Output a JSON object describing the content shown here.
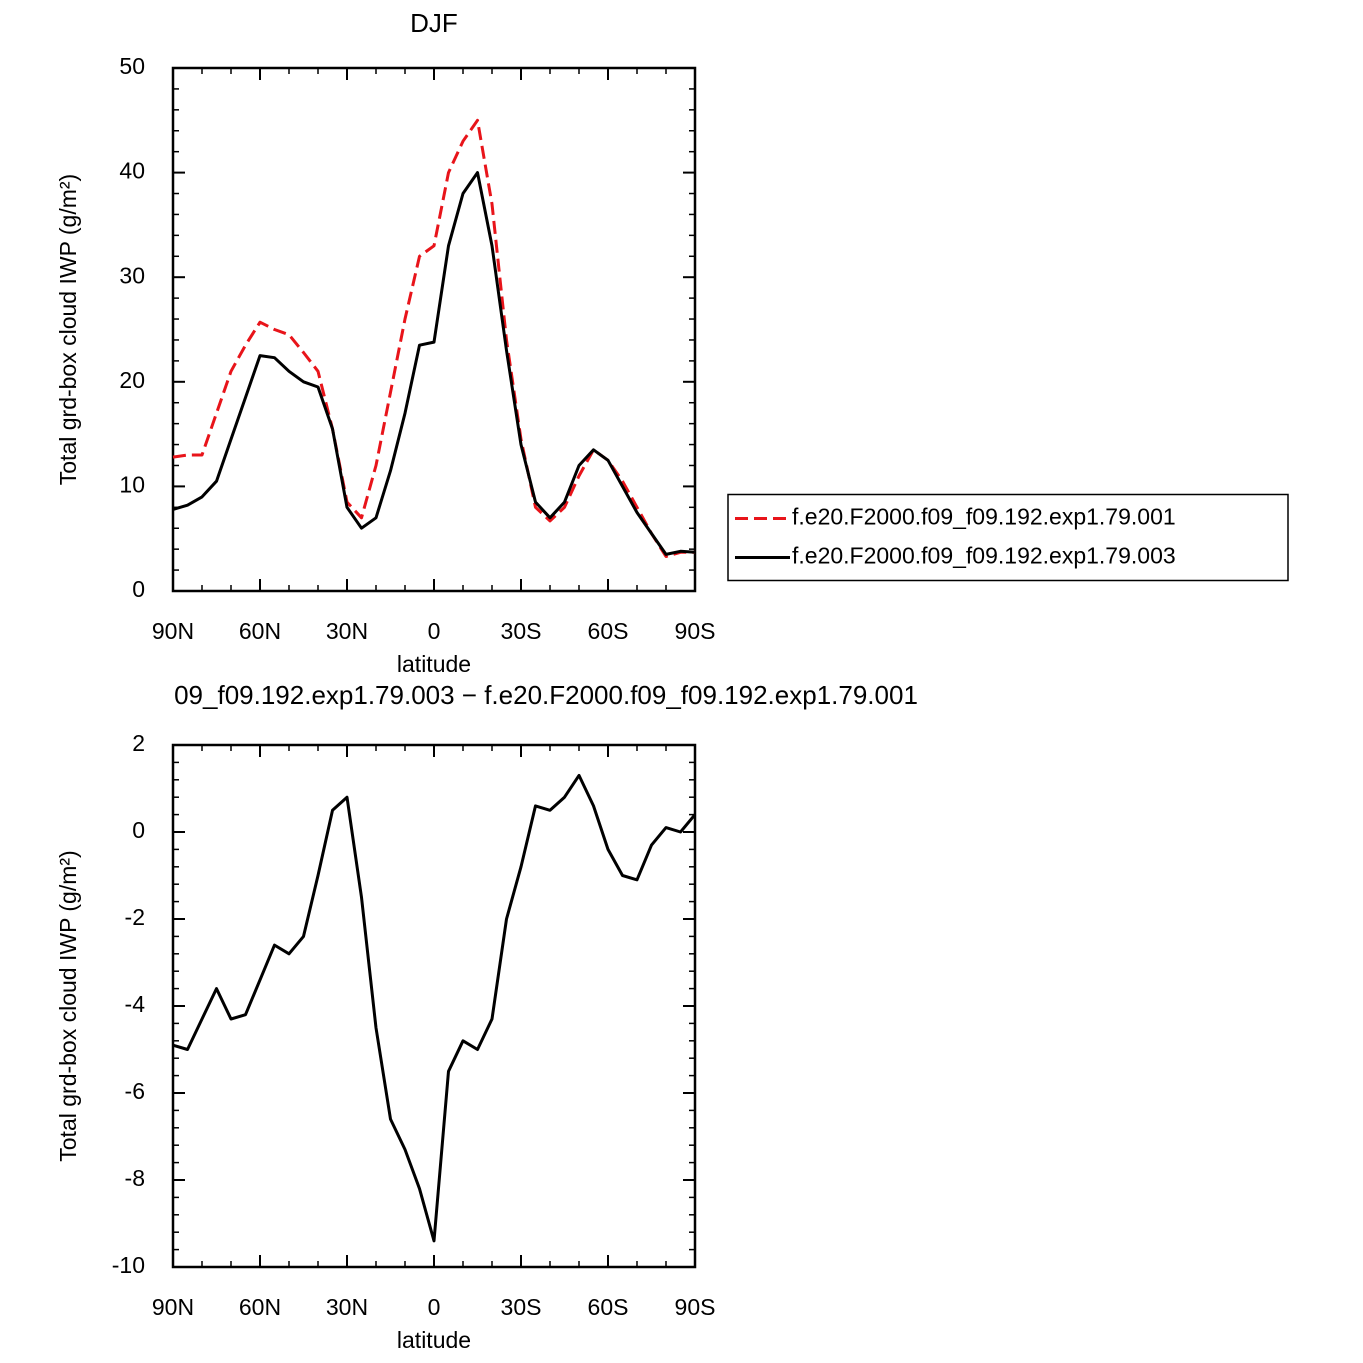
{
  "chart_data": [
    {
      "type": "line",
      "title": "DJF",
      "xlabel": "latitude",
      "ylabel": "Total grd-box cloud IWP (g/m²)",
      "x": [
        90,
        85,
        80,
        75,
        70,
        65,
        60,
        55,
        50,
        45,
        40,
        35,
        30,
        25,
        20,
        15,
        10,
        5,
        0,
        -5,
        -10,
        -15,
        -20,
        -25,
        -30,
        -35,
        -40,
        -45,
        -50,
        -55,
        -60,
        -65,
        -70,
        -75,
        -80,
        -85,
        -90
      ],
      "series": [
        {
          "name": "f.e20.F2000.f09_f09.192.exp1.79.001",
          "color": "#e8141a",
          "dash": true,
          "values": [
            12.8,
            13.0,
            13.0,
            17.0,
            21.0,
            23.5,
            25.7,
            25.0,
            24.5,
            22.8,
            21.0,
            15.5,
            8.5,
            7.0,
            12.0,
            19.0,
            26.0,
            32.0,
            33.0,
            40.0,
            43.0,
            45.0,
            37.0,
            24.0,
            14.5,
            8.0,
            6.7,
            8.0,
            11.0,
            13.5,
            12.5,
            10.5,
            8.0,
            5.5,
            3.3,
            3.7,
            3.7
          ]
        },
        {
          "name": "f.e20.F2000.f09_f09.192.exp1.79.003",
          "color": "#000000",
          "dash": false,
          "values": [
            7.8,
            8.2,
            9.0,
            10.5,
            14.5,
            18.5,
            22.5,
            22.3,
            21.0,
            20.0,
            19.5,
            15.5,
            8.0,
            6.0,
            7.0,
            11.5,
            17.0,
            23.5,
            23.8,
            33.0,
            38.0,
            40.0,
            33.0,
            23.0,
            14.0,
            8.5,
            7.0,
            8.5,
            12.0,
            13.5,
            12.5,
            10.0,
            7.5,
            5.5,
            3.5,
            3.8,
            3.7
          ]
        }
      ],
      "xlim": [
        90,
        -90
      ],
      "xticks": [
        {
          "value": 90,
          "label": "90N"
        },
        {
          "value": 60,
          "label": "60N"
        },
        {
          "value": 30,
          "label": "30N"
        },
        0,
        {
          "value": -30,
          "label": "30S"
        },
        {
          "value": -60,
          "label": "60S"
        },
        {
          "value": -90,
          "label": "90S"
        }
      ],
      "ylim": [
        0,
        50
      ],
      "yticks": [
        0,
        10,
        20,
        30,
        40,
        50
      ],
      "legend": "right"
    },
    {
      "type": "line",
      "title": "09_f09.192.exp1.79.003 − f.e20.F2000.f09_f09.192.exp1.79.001",
      "xlabel": "latitude",
      "ylabel": "Total grd-box cloud IWP (g/m²)",
      "x": [
        90,
        85,
        80,
        75,
        70,
        65,
        60,
        55,
        50,
        45,
        40,
        35,
        30,
        25,
        20,
        15,
        10,
        5,
        0,
        -5,
        -10,
        -15,
        -20,
        -25,
        -30,
        -35,
        -40,
        -45,
        -50,
        -55,
        -60,
        -65,
        -70,
        -75,
        -80,
        -85,
        -90
      ],
      "series": [
        {
          "color": "#000000",
          "dash": false,
          "values": [
            -4.9,
            -5.0,
            -4.3,
            -3.6,
            -4.3,
            -4.2,
            -3.4,
            -2.6,
            -2.8,
            -2.4,
            -1.0,
            0.5,
            0.8,
            -1.5,
            -4.5,
            -6.6,
            -7.3,
            -8.2,
            -9.4,
            -5.5,
            -4.8,
            -5.0,
            -4.3,
            -2.0,
            -0.8,
            0.6,
            0.5,
            0.8,
            1.3,
            0.6,
            -0.4,
            -1.0,
            -1.1,
            -0.3,
            0.1,
            0.0,
            0.4
          ]
        }
      ],
      "xlim": [
        90,
        -90
      ],
      "xticks": [
        {
          "value": 90,
          "label": "90N"
        },
        {
          "value": 60,
          "label": "60N"
        },
        {
          "value": 30,
          "label": "30N"
        },
        0,
        {
          "value": -30,
          "label": "30S"
        },
        {
          "value": -60,
          "label": "60S"
        },
        {
          "value": -90,
          "label": "90S"
        }
      ],
      "ylim": [
        -10,
        2
      ],
      "yticks": [
        -10,
        -8,
        -6,
        -4,
        -2,
        0,
        2
      ]
    }
  ]
}
